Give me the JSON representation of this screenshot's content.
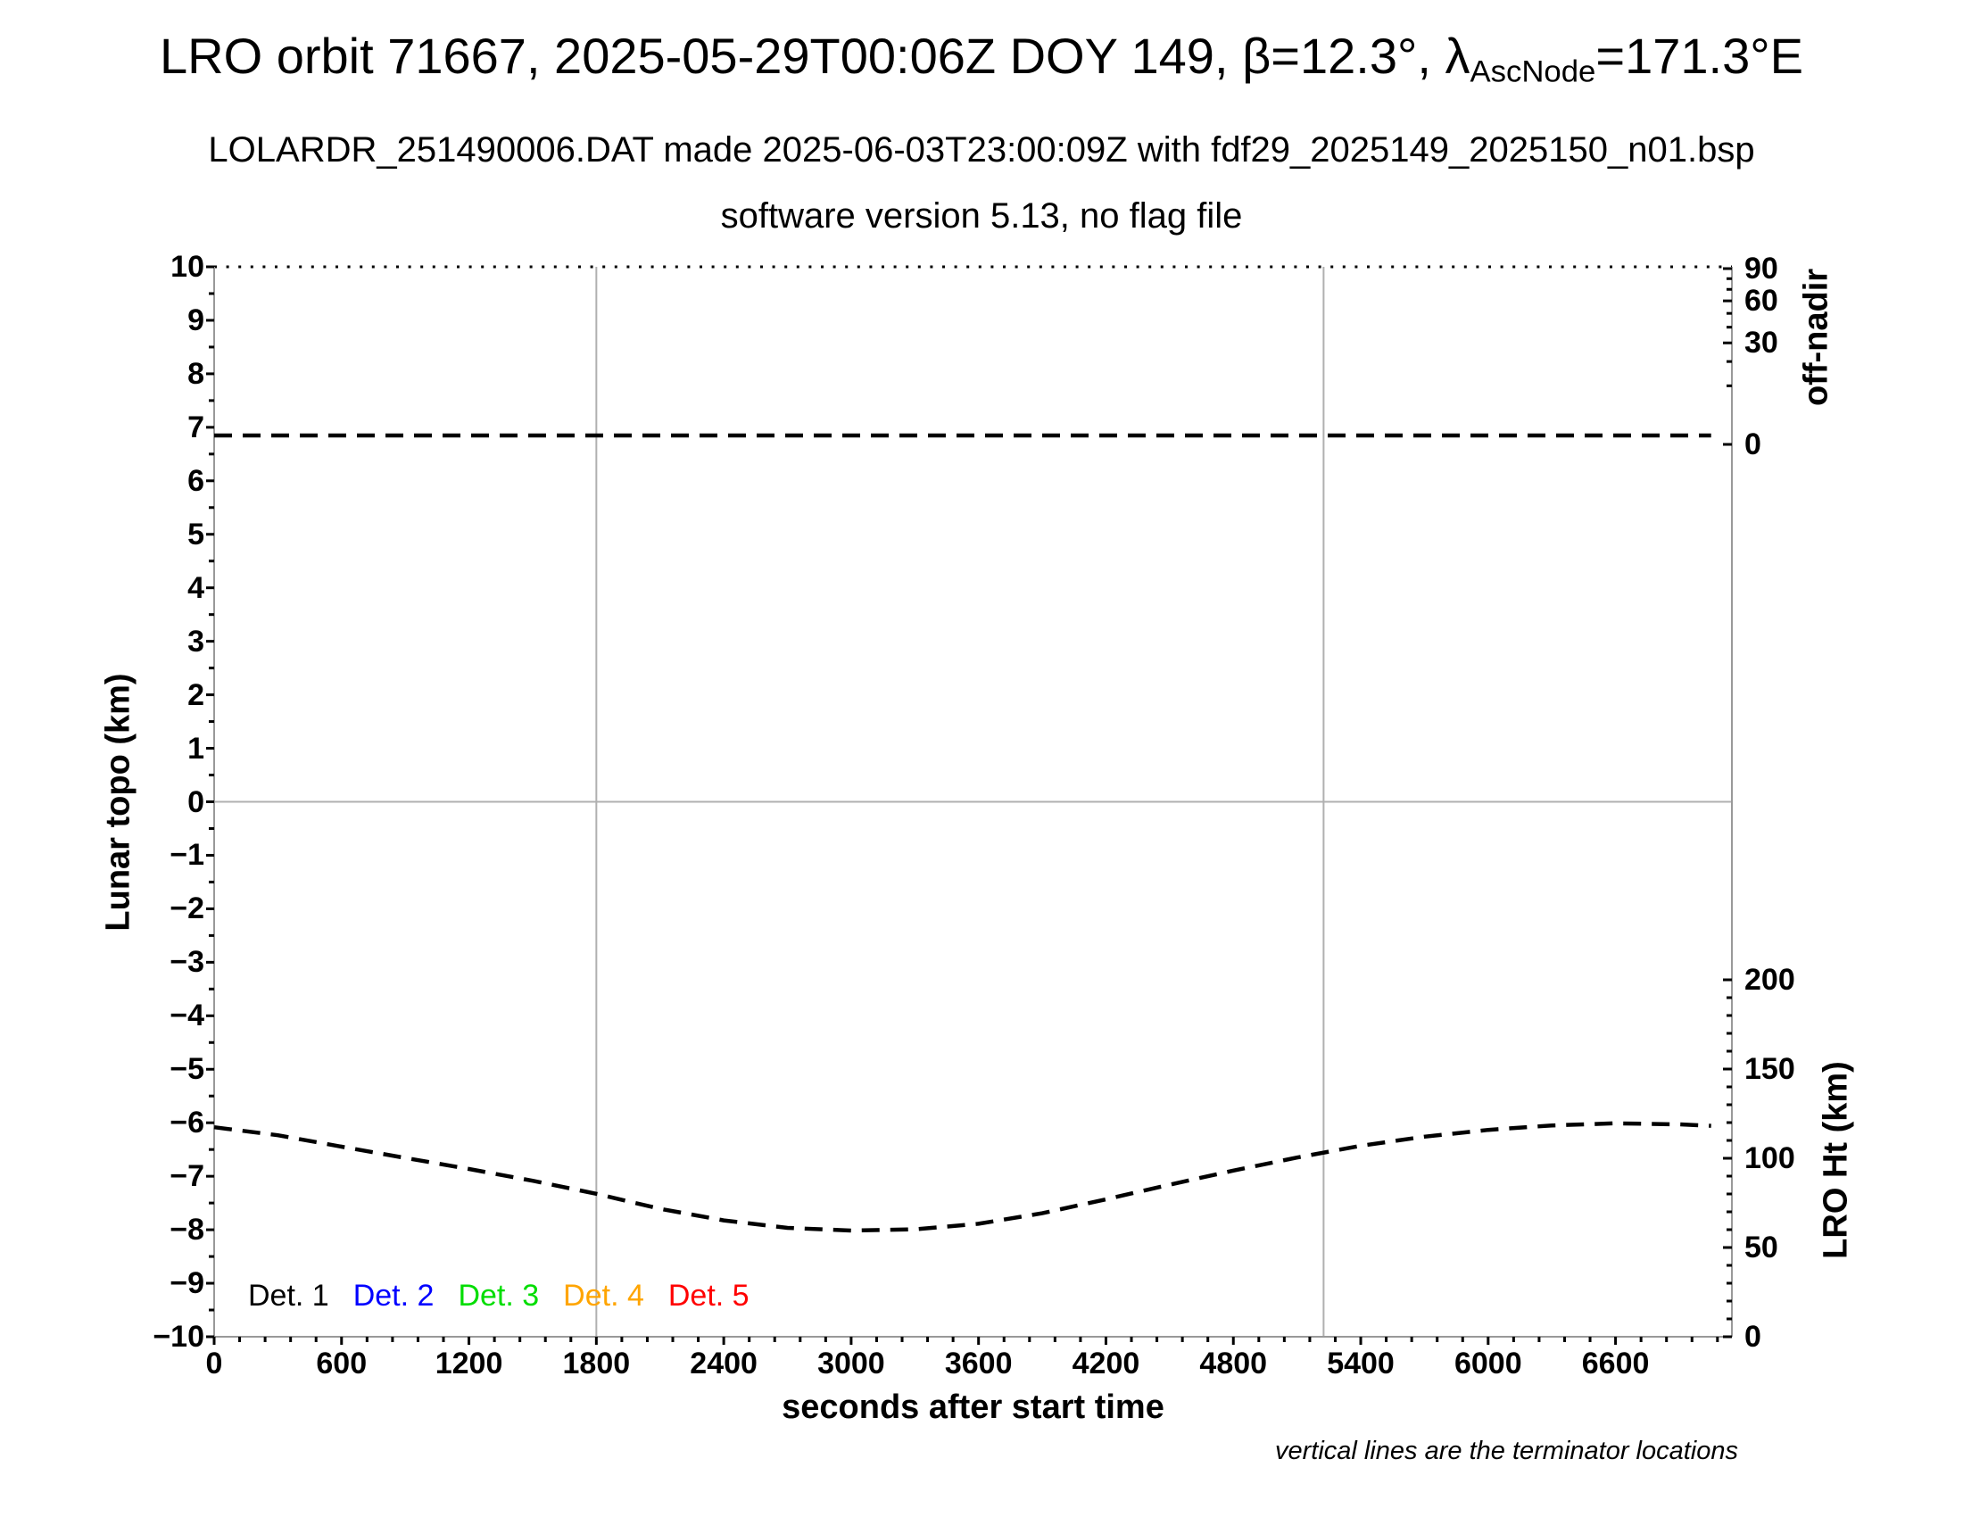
{
  "title": {
    "prefix": "LRO orbit 71667, 2025-05-29T00:06Z DOY 149, β=12.3°, λ",
    "lambda_sub": "AscNode",
    "suffix": "=171.3°E"
  },
  "subtitle_line1": "LOLARDR_251490006.DAT made 2025-06-03T23:00:09Z with fdf29_2025149_2025150_n01.bsp",
  "subtitle_line2": "software version 5.13, no flag file",
  "footnote": "vertical lines are the terminator locations",
  "legend": {
    "items": [
      {
        "label": "Det. 1",
        "color": "#000000"
      },
      {
        "label": "Det. 2",
        "color": "#0000ff"
      },
      {
        "label": "Det. 3",
        "color": "#00dd00"
      },
      {
        "label": "Det. 4",
        "color": "#ffa500"
      },
      {
        "label": "Det. 5",
        "color": "#ff0000"
      }
    ]
  },
  "chart_data": {
    "type": "line",
    "title": "LRO orbit 71667, 2025-05-29T00:06Z DOY 149, β=12.3°, λAscNode=171.3°E",
    "x_axis": {
      "label": "seconds after start time",
      "min": 0,
      "max": 7148,
      "major_tick_step": 600,
      "minor_tick_step": 120,
      "tick_labels": [
        0,
        600,
        1200,
        1800,
        2400,
        3000,
        3600,
        4200,
        4800,
        5400,
        6000,
        6600
      ]
    },
    "y_axis_left": {
      "label": "Lunar topo (km)",
      "min": -10,
      "max": 10,
      "major_tick_step": 1,
      "minor_tick_step": 0.5,
      "tick_labels": [
        10,
        9,
        8,
        7,
        6,
        5,
        4,
        3,
        2,
        1,
        0,
        -1,
        -2,
        -3,
        -4,
        -5,
        -6,
        -7,
        -8,
        -9,
        -10
      ]
    },
    "y_axis_right_top": {
      "label": "off-nadir",
      "scale": "sqrt",
      "major_ticks": [
        0,
        30,
        60,
        90
      ],
      "minor_ticks": [
        10,
        20,
        40,
        50,
        70,
        80
      ]
    },
    "y_axis_right_bottom": {
      "label": "LRO Ht (km)",
      "min": 0,
      "max": 200,
      "major_ticks": [
        0,
        50,
        100,
        150,
        200
      ],
      "minor_tick_step": 10
    },
    "zero_line_topo_km": 0,
    "terminator_lines_s": [
      1800,
      5225
    ],
    "grid_color": "#b0b0b0",
    "series": [
      {
        "name": "off-nadir angle",
        "axis": "off_nadir",
        "style": "dashed",
        "color": "#000000",
        "points": [
          [
            0,
            0.23
          ],
          [
            7050,
            0.23
          ]
        ]
      },
      {
        "name": "LRO height",
        "axis": "lro_ht",
        "style": "dashed",
        "color": "#000000",
        "points": [
          [
            0,
            117.4
          ],
          [
            300,
            112.9
          ],
          [
            600,
            106.5
          ],
          [
            900,
            100.2
          ],
          [
            1200,
            94.0
          ],
          [
            1500,
            87.4
          ],
          [
            1800,
            80.1
          ],
          [
            2100,
            71.7
          ],
          [
            2400,
            65.2
          ],
          [
            2700,
            61.0
          ],
          [
            3000,
            59.5
          ],
          [
            3300,
            60.2
          ],
          [
            3600,
            63.3
          ],
          [
            3900,
            69.2
          ],
          [
            4200,
            77.0
          ],
          [
            4500,
            85.2
          ],
          [
            4800,
            93.1
          ],
          [
            5100,
            100.4
          ],
          [
            5400,
            107.0
          ],
          [
            5700,
            112.1
          ],
          [
            6000,
            115.9
          ],
          [
            6300,
            118.4
          ],
          [
            6600,
            119.6
          ],
          [
            6900,
            119.0
          ],
          [
            7050,
            118.2
          ]
        ]
      }
    ]
  }
}
